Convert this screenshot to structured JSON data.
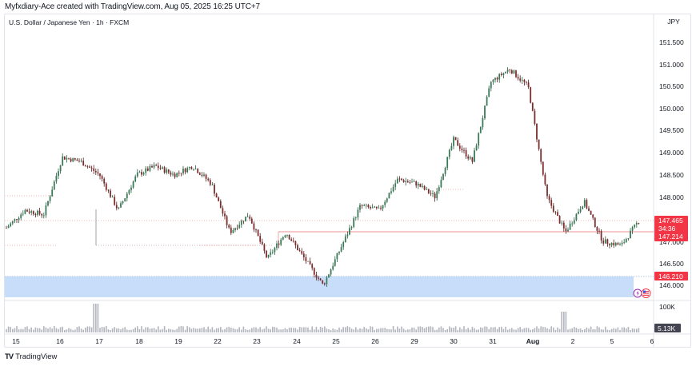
{
  "header": {
    "attribution": "Myfxdiary-Ace created with TradingView.com, Aug 05, 2025 16:25 UTC+7"
  },
  "chart": {
    "symbol_line": "U.S. Dollar / Japanese Yen · 1h · FXCM",
    "currency": "JPY"
  },
  "footer": {
    "logo_mark": "TV",
    "brand": "TradingView"
  },
  "price_labels": {
    "last_price": "147.465",
    "countdown": "34:36",
    "line_level": "147.214",
    "zone_level": "146.210",
    "volume_last": "5.13K",
    "volume_scale": "100K"
  },
  "colors": {
    "up": "#2a5d3f",
    "down": "#5c1f1f",
    "up_body": "#3b7a57",
    "down_body": "#7a2e2e",
    "red_label": "#f23645",
    "zone_fill": "#c7ddfa",
    "volume": "#b2b5be",
    "grid_text": "#131722"
  },
  "chart_data": {
    "type": "candlestick",
    "title": "U.S. Dollar / Japanese Yen · 1h · FXCM",
    "xlabel": "",
    "ylabel": "JPY",
    "ylim": [
      145.75,
      151.85
    ],
    "y_ticks": [
      146.0,
      146.5,
      147.0,
      147.5,
      148.0,
      148.5,
      149.0,
      149.5,
      150.0,
      150.5,
      151.0,
      151.5
    ],
    "x_ticks": [
      "15",
      "16",
      "17",
      "18",
      "19",
      "22",
      "23",
      "24",
      "25",
      "26",
      "29",
      "30",
      "31",
      "Aug",
      "2",
      "5",
      "6"
    ],
    "grid": false,
    "legend": "none",
    "approx_path": [
      {
        "date": "15",
        "price": 147.3
      },
      {
        "date": "15.5",
        "price": 147.7
      },
      {
        "date": "16",
        "price": 147.6
      },
      {
        "date": "16.2",
        "price": 148.9
      },
      {
        "date": "16.8",
        "price": 148.8
      },
      {
        "date": "17",
        "price": 148.5
      },
      {
        "date": "17.1",
        "price": 147.7
      },
      {
        "date": "17.4",
        "price": 148.5
      },
      {
        "date": "18",
        "price": 148.7
      },
      {
        "date": "18.5",
        "price": 148.5
      },
      {
        "date": "19",
        "price": 148.7
      },
      {
        "date": "19.3",
        "price": 148.3
      },
      {
        "date": "22",
        "price": 147.2
      },
      {
        "date": "22.5",
        "price": 147.6
      },
      {
        "date": "23",
        "price": 146.6
      },
      {
        "date": "23.3",
        "price": 147.2
      },
      {
        "date": "24",
        "price": 146.6
      },
      {
        "date": "24.5",
        "price": 146.0
      },
      {
        "date": "25",
        "price": 146.9
      },
      {
        "date": "25.4",
        "price": 147.8
      },
      {
        "date": "26",
        "price": 147.7
      },
      {
        "date": "29",
        "price": 148.4
      },
      {
        "date": "30",
        "price": 148.3
      },
      {
        "date": "30.5",
        "price": 148.0
      },
      {
        "date": "31",
        "price": 149.3
      },
      {
        "date": "31.5",
        "price": 148.8
      },
      {
        "date": "Aug",
        "price": 150.6
      },
      {
        "date": "1.5",
        "price": 150.9
      },
      {
        "date": "1.8",
        "price": 150.5
      },
      {
        "date": "2",
        "price": 148.0
      },
      {
        "date": "2.5",
        "price": 147.2
      },
      {
        "date": "4.5",
        "price": 147.9
      },
      {
        "date": "5",
        "price": 147.0
      },
      {
        "date": "5.3",
        "price": 146.9
      },
      {
        "date": "5.6",
        "price": 147.5
      }
    ],
    "annotations": [
      {
        "type": "hline",
        "price": 147.214,
        "label": "147.214",
        "color": "#f23645"
      },
      {
        "type": "price_label",
        "price": 147.465,
        "label": "147.465",
        "countdown": "34:36"
      },
      {
        "type": "zone",
        "from": 145.75,
        "to": 146.21,
        "label": "146.210",
        "color": "#c7ddfa"
      }
    ],
    "volume": {
      "scale_label": "100K",
      "last_value": "5.13K"
    }
  }
}
